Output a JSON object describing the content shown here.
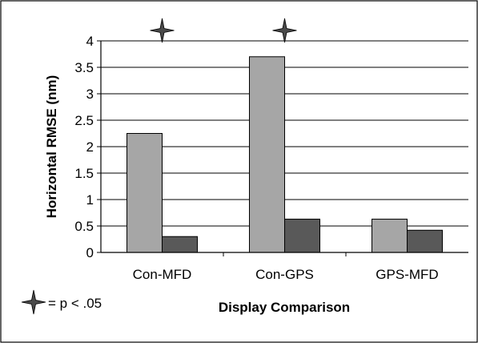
{
  "chart_data": {
    "type": "bar",
    "title": "",
    "xlabel": "Display Comparison",
    "ylabel": "Horizontal RMSE (nm)",
    "ylim": [
      0,
      4
    ],
    "yticks": [
      "0",
      "0.5",
      "1",
      "1.5",
      "2",
      "2.5",
      "3",
      "3.5",
      "4"
    ],
    "grid": true,
    "categories": [
      "Con-MFD",
      "Con-GPS",
      "GPS-MFD"
    ],
    "series": [
      {
        "color": "#a6a6a6",
        "values": [
          2.25,
          3.7,
          0.63
        ]
      },
      {
        "color": "#595959",
        "values": [
          0.3,
          0.63,
          0.42
        ]
      }
    ],
    "significant": [
      true,
      true,
      false
    ],
    "legend": {
      "marker": "four-point-star-icon",
      "text": "= p < .05",
      "placement": "bottom-left"
    }
  }
}
